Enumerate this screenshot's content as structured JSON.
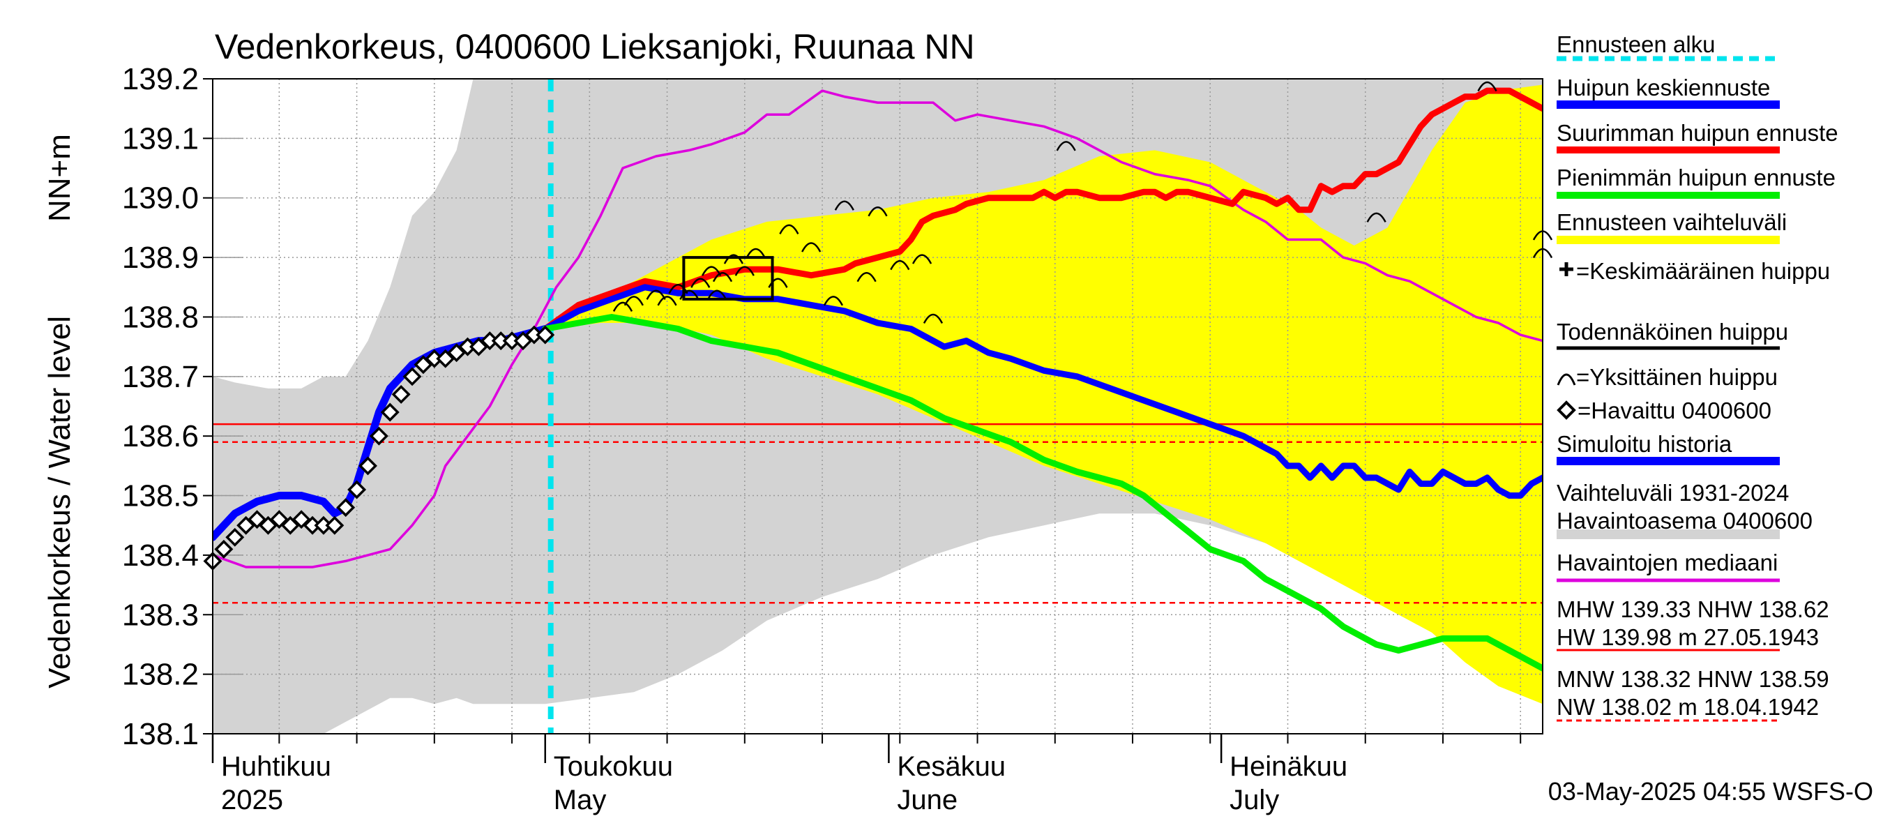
{
  "chart_data": {
    "type": "line",
    "title": "Vedenkorkeus, 0400600 Lieksanjoki, Ruunaa NN",
    "ylabel": "Vedenkorkeus / Water level",
    "yunit": "NN+m",
    "ylim": [
      138.1,
      139.2
    ],
    "yticks": [
      138.1,
      138.2,
      138.3,
      138.4,
      138.5,
      138.6,
      138.7,
      138.8,
      138.9,
      139.0,
      139.1,
      139.2
    ],
    "x_range_days": [
      0,
      120
    ],
    "x_origin": "2025-04-01",
    "forecast_start_day": 30.5,
    "month_labels": [
      {
        "day": 0,
        "fi": "Huhtikuu",
        "en": "2025"
      },
      {
        "day": 30,
        "fi": "Toukokuu",
        "en": "May"
      },
      {
        "day": 61,
        "fi": "Kesäkuu",
        "en": "June"
      },
      {
        "day": 91,
        "fi": "Heinäkuu",
        "en": "July"
      }
    ],
    "reference_lines": [
      {
        "name": "NHW",
        "value": 138.62,
        "style": "solid"
      },
      {
        "name": "HNW",
        "value": 138.59,
        "style": "dashed"
      },
      {
        "name": "MNW",
        "value": 138.32,
        "style": "dashed"
      }
    ],
    "variation_band": {
      "name": "Vaihteluväli 1931-2024 Havaintoasema 0400600",
      "days": [
        0,
        2,
        5,
        8,
        10,
        12,
        14,
        16,
        18,
        20,
        22,
        23.5,
        25,
        30,
        34,
        38,
        42,
        46,
        50,
        55,
        60,
        65,
        70,
        75,
        80,
        85,
        90,
        95,
        100,
        105,
        110,
        115,
        120
      ],
      "upper": [
        138.7,
        138.69,
        138.68,
        138.68,
        138.7,
        138.7,
        138.76,
        138.85,
        138.97,
        139.01,
        139.08,
        139.2,
        139.2,
        139.2,
        139.2,
        139.2,
        139.2,
        139.2,
        139.2,
        139.2,
        139.2,
        139.2,
        139.2,
        139.2,
        139.2,
        139.2,
        139.2,
        139.2,
        139.2,
        139.2,
        139.2,
        139.2,
        139.2
      ],
      "lower": [
        138.1,
        138.1,
        138.1,
        138.1,
        138.1,
        138.12,
        138.14,
        138.16,
        138.16,
        138.15,
        138.16,
        138.15,
        138.15,
        138.15,
        138.16,
        138.17,
        138.2,
        138.24,
        138.29,
        138.33,
        138.36,
        138.4,
        138.43,
        138.45,
        138.47,
        138.47,
        138.45,
        138.42,
        138.39,
        138.35,
        138.33,
        138.32,
        138.32
      ]
    },
    "forecast_band": {
      "name": "Ennusteen vaihteluväli",
      "days": [
        30.5,
        35,
        40,
        45,
        50,
        55,
        60,
        65,
        70,
        75,
        80,
        85,
        90,
        95,
        98,
        100,
        103,
        106,
        110,
        113,
        116,
        120
      ],
      "upper": [
        138.78,
        138.83,
        138.88,
        138.93,
        138.96,
        138.97,
        138.98,
        139.0,
        139.01,
        139.03,
        139.07,
        139.08,
        139.06,
        139.01,
        138.98,
        138.95,
        138.92,
        138.95,
        139.08,
        139.16,
        139.18,
        139.19
      ],
      "lower": [
        138.78,
        138.79,
        138.79,
        138.77,
        138.73,
        138.7,
        138.67,
        138.63,
        138.59,
        138.55,
        138.52,
        138.49,
        138.46,
        138.42,
        138.39,
        138.37,
        138.34,
        138.31,
        138.27,
        138.22,
        138.18,
        138.15
      ]
    },
    "series": [
      {
        "name": "Havaintojen mediaani",
        "color": "#dd00dd",
        "days": [
          0,
          3,
          6,
          9,
          12,
          14,
          16,
          18,
          20,
          21,
          23,
          25,
          27,
          29,
          31,
          33,
          35,
          37,
          40,
          43,
          45,
          48,
          50,
          52,
          55,
          57,
          60,
          62,
          65,
          67,
          69,
          72,
          75,
          78,
          80,
          82,
          85,
          88,
          90,
          93,
          95,
          97,
          100,
          102,
          104,
          106,
          108,
          110,
          112,
          114,
          116,
          118,
          120
        ],
        "values": [
          138.4,
          138.38,
          138.38,
          138.38,
          138.39,
          138.4,
          138.41,
          138.45,
          138.5,
          138.55,
          138.6,
          138.65,
          138.72,
          138.78,
          138.85,
          138.9,
          138.97,
          139.05,
          139.07,
          139.08,
          139.09,
          139.11,
          139.14,
          139.14,
          139.18,
          139.17,
          139.16,
          139.16,
          139.16,
          139.13,
          139.14,
          139.13,
          139.12,
          139.1,
          139.08,
          139.06,
          139.04,
          139.03,
          139.02,
          138.98,
          138.96,
          138.93,
          138.93,
          138.9,
          138.89,
          138.87,
          138.86,
          138.84,
          138.82,
          138.8,
          138.79,
          138.77,
          138.76
        ]
      },
      {
        "name": "Simuloitu historia",
        "color": "#0000ff",
        "days": [
          0,
          2,
          4,
          6,
          8,
          10,
          11,
          12,
          13,
          14,
          15,
          16,
          17,
          18,
          19,
          20,
          22,
          24,
          26,
          28,
          30
        ],
        "values": [
          138.43,
          138.47,
          138.49,
          138.5,
          138.5,
          138.49,
          138.47,
          138.48,
          138.52,
          138.58,
          138.64,
          138.68,
          138.7,
          138.72,
          138.73,
          138.74,
          138.75,
          138.76,
          138.76,
          138.77,
          138.78
        ]
      },
      {
        "name": "Huipun keskiennuste",
        "color": "#0000ff",
        "days": [
          30,
          33,
          36,
          39,
          42,
          45,
          48,
          51,
          54,
          57,
          60,
          63,
          66,
          68,
          70,
          72,
          75,
          78,
          81,
          84,
          87,
          90,
          93,
          95,
          96,
          97,
          98,
          99,
          100,
          101,
          102,
          103,
          104,
          105,
          106,
          107,
          108,
          109,
          110,
          111,
          112,
          113,
          114,
          115,
          116,
          117,
          118,
          119,
          120
        ],
        "values": [
          138.78,
          138.81,
          138.83,
          138.85,
          138.84,
          138.84,
          138.83,
          138.83,
          138.82,
          138.81,
          138.79,
          138.78,
          138.75,
          138.76,
          138.74,
          138.73,
          138.71,
          138.7,
          138.68,
          138.66,
          138.64,
          138.62,
          138.6,
          138.58,
          138.57,
          138.55,
          138.55,
          138.53,
          138.55,
          138.53,
          138.55,
          138.55,
          138.53,
          138.53,
          138.52,
          138.51,
          138.54,
          138.52,
          138.52,
          138.54,
          138.53,
          138.52,
          138.52,
          138.53,
          138.51,
          138.5,
          138.5,
          138.52,
          138.53
        ]
      },
      {
        "name": "Suurimman huipun ennuste",
        "color": "#ff0000",
        "days": [
          30,
          33,
          36,
          39,
          42,
          45,
          48,
          51,
          54,
          57,
          58,
          60,
          62,
          63,
          64,
          65,
          67,
          68,
          70,
          72,
          74,
          75,
          76,
          77,
          78,
          80,
          82,
          84,
          85,
          86,
          87,
          88,
          90,
          92,
          93,
          95,
          96,
          97,
          98,
          99,
          100,
          101,
          102,
          103,
          104,
          105,
          107,
          108,
          109,
          110,
          111,
          112,
          113,
          114,
          115,
          116,
          117,
          118,
          119,
          120
        ],
        "values": [
          138.78,
          138.82,
          138.84,
          138.86,
          138.85,
          138.87,
          138.88,
          138.88,
          138.87,
          138.88,
          138.89,
          138.9,
          138.91,
          138.93,
          138.96,
          138.97,
          138.98,
          138.99,
          139.0,
          139.0,
          139.0,
          139.01,
          139.0,
          139.01,
          139.01,
          139.0,
          139.0,
          139.01,
          139.01,
          139.0,
          139.01,
          139.01,
          139.0,
          138.99,
          139.01,
          139.0,
          138.99,
          139.0,
          138.98,
          138.98,
          139.02,
          139.01,
          139.02,
          139.02,
          139.04,
          139.04,
          139.06,
          139.09,
          139.12,
          139.14,
          139.15,
          139.16,
          139.17,
          139.17,
          139.18,
          139.18,
          139.18,
          139.17,
          139.16,
          139.15
        ]
      },
      {
        "name": "Pienimmän huipun ennuste",
        "color": "#00ee00",
        "days": [
          30,
          33,
          36,
          39,
          42,
          45,
          48,
          51,
          54,
          57,
          60,
          63,
          66,
          69,
          72,
          75,
          78,
          80,
          82,
          84,
          86,
          88,
          90,
          93,
          95,
          97,
          100,
          102,
          105,
          107,
          109,
          111,
          113,
          115,
          116,
          117,
          118,
          119,
          120
        ],
        "values": [
          138.78,
          138.79,
          138.8,
          138.79,
          138.78,
          138.76,
          138.75,
          138.74,
          138.72,
          138.7,
          138.68,
          138.66,
          138.63,
          138.61,
          138.59,
          138.56,
          138.54,
          138.53,
          138.52,
          138.5,
          138.47,
          138.44,
          138.41,
          138.39,
          138.36,
          138.34,
          138.31,
          138.28,
          138.25,
          138.24,
          138.25,
          138.26,
          138.26,
          138.26,
          138.25,
          138.24,
          138.23,
          138.22,
          138.21
        ]
      },
      {
        "name": "Havaittu 0400600",
        "days": [
          0,
          1,
          2,
          3,
          4,
          5,
          6,
          7,
          8,
          9,
          10,
          11,
          12,
          13,
          14,
          15,
          16,
          17,
          18,
          19,
          20,
          21,
          22,
          23,
          24,
          25,
          26,
          27,
          28,
          29,
          30
        ],
        "values": [
          138.39,
          138.41,
          138.43,
          138.45,
          138.46,
          138.45,
          138.46,
          138.45,
          138.46,
          138.45,
          138.45,
          138.45,
          138.48,
          138.51,
          138.55,
          138.6,
          138.64,
          138.67,
          138.7,
          138.72,
          138.73,
          138.73,
          138.74,
          138.75,
          138.75,
          138.76,
          138.76,
          138.76,
          138.76,
          138.77,
          138.77
        ]
      }
    ],
    "individual_peaks": {
      "name": "Yksittäinen huippu",
      "days": [
        37,
        38,
        40,
        41,
        42,
        43,
        44,
        45,
        45.5,
        46,
        47,
        48,
        49,
        51,
        52,
        54,
        56,
        57,
        59,
        60,
        62,
        64,
        65,
        77,
        105,
        115,
        120,
        120
      ],
      "values": [
        138.82,
        138.83,
        138.84,
        138.83,
        138.85,
        138.84,
        138.86,
        138.88,
        138.84,
        138.87,
        138.9,
        138.88,
        138.91,
        138.86,
        138.95,
        138.92,
        138.83,
        138.99,
        138.87,
        138.98,
        138.89,
        138.9,
        138.8,
        139.09,
        138.97,
        139.19,
        138.94,
        138.91
      ]
    },
    "probable_peak_box": {
      "name": "Todennäköinen huippu",
      "day_from": 42.5,
      "day_to": 50.5,
      "value_from": 138.83,
      "value_to": 138.9
    },
    "legend": [
      {
        "label": "Ennusteen alku",
        "color": "#00e5ee",
        "style": "dashed"
      },
      {
        "label": "Huipun keskiennuste",
        "color": "#0000ff",
        "style": "line"
      },
      {
        "label": "Suurimman huipun ennuste",
        "color": "#ff0000",
        "style": "line"
      },
      {
        "label": "Pienimmän huipun ennuste",
        "color": "#00ee00",
        "style": "line"
      },
      {
        "label": "Ennusteen vaihteluväli",
        "color": "#ffff00",
        "style": "line"
      },
      {
        "label": "=Keskimääräinen huippu",
        "color": "#000000",
        "style": "plus"
      },
      {
        "label": "Todennäköinen huippu",
        "color": "#000000",
        "style": "line"
      },
      {
        "label": "=Yksittäinen huippu",
        "color": "#000000",
        "style": "arc"
      },
      {
        "label": "=Havaittu 0400600",
        "color": "#000000",
        "style": "diamond"
      },
      {
        "label": "Simuloitu historia",
        "color": "#0000ff",
        "style": "line"
      },
      {
        "label": "Vaihteluväli 1931-2024",
        "label2": " Havaintoasema 0400600",
        "color": "#d3d3d3",
        "style": "line"
      },
      {
        "label": "Havaintojen mediaani",
        "color": "#dd00dd",
        "style": "line"
      },
      {
        "label": "MHW 139.33 NHW 138.62",
        "label2": "HW 139.98 m 27.05.1943",
        "color": "#ff0000",
        "style": "thin"
      },
      {
        "label": "MNW 138.32 HNW 138.59",
        "label2": "NW 138.02 m 18.04.1942",
        "color": "#ff0000",
        "style": "thin-dashed"
      }
    ]
  },
  "footer": "03-May-2025 04:55 WSFS-O",
  "colors": {
    "band": "#d3d3d3",
    "forecast": "#ffff00",
    "forecast_start": "#00e5ee",
    "grid": "#999999"
  }
}
